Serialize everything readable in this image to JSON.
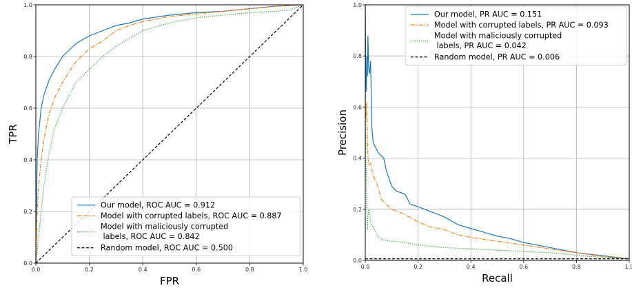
{
  "chart_data": [
    {
      "type": "line",
      "xlabel": "FPR",
      "ylabel": "TPR",
      "xlim": [
        0,
        1
      ],
      "ylim": [
        0,
        1
      ],
      "xticks": [
        "0.0",
        "0.2",
        "0.4",
        "0.6",
        "0.8",
        "1.0"
      ],
      "yticks": [
        "0.0",
        "0.2",
        "0.4",
        "0.6",
        "0.8",
        "1.0"
      ],
      "grid": true,
      "legend_position": "lower-right",
      "series": [
        {
          "name": "Our model, ROC AUC = 0.912",
          "color": "#1f77b4",
          "dash": "solid",
          "x": [
            0,
            0.002,
            0.005,
            0.01,
            0.02,
            0.03,
            0.04,
            0.05,
            0.07,
            0.1,
            0.13,
            0.15,
            0.2,
            0.25,
            0.3,
            0.35,
            0.4,
            0.5,
            0.6,
            0.7,
            0.8,
            0.9,
            1.0
          ],
          "y": [
            0,
            0.2,
            0.4,
            0.5,
            0.6,
            0.65,
            0.68,
            0.71,
            0.75,
            0.8,
            0.83,
            0.85,
            0.88,
            0.9,
            0.92,
            0.93,
            0.945,
            0.96,
            0.97,
            0.975,
            0.985,
            0.995,
            1.0
          ]
        },
        {
          "name": "Model with corrupted labels, ROC AUC = 0.887",
          "color": "#ff7f0e",
          "dash": "dashdot",
          "x": [
            0,
            0.005,
            0.01,
            0.02,
            0.03,
            0.05,
            0.07,
            0.1,
            0.13,
            0.15,
            0.2,
            0.25,
            0.3,
            0.35,
            0.4,
            0.5,
            0.6,
            0.7,
            0.8,
            0.9,
            1.0
          ],
          "y": [
            0,
            0.2,
            0.3,
            0.4,
            0.48,
            0.58,
            0.64,
            0.7,
            0.75,
            0.78,
            0.83,
            0.86,
            0.9,
            0.92,
            0.935,
            0.955,
            0.965,
            0.975,
            0.985,
            0.995,
            1.0
          ]
        },
        {
          "name_line1": "Model with maliciously corrupted",
          "name_line2": " labels, ROC AUC = 0.842",
          "color": "#2ca02c",
          "dash": "dotted",
          "x": [
            0,
            0.01,
            0.02,
            0.03,
            0.05,
            0.07,
            0.1,
            0.13,
            0.15,
            0.2,
            0.25,
            0.3,
            0.35,
            0.4,
            0.5,
            0.6,
            0.7,
            0.8,
            0.9,
            0.95,
            1.0
          ],
          "y": [
            0,
            0.1,
            0.2,
            0.3,
            0.43,
            0.52,
            0.6,
            0.66,
            0.7,
            0.75,
            0.8,
            0.84,
            0.87,
            0.9,
            0.93,
            0.95,
            0.96,
            0.97,
            0.975,
            0.98,
            1.0
          ]
        },
        {
          "name": "Random model, ROC AUC = 0.500",
          "color": "#000000",
          "dash": "dashed",
          "x": [
            0,
            1
          ],
          "y": [
            0,
            1
          ]
        }
      ]
    },
    {
      "type": "line",
      "xlabel": "Recall",
      "ylabel": "Precision",
      "xlim": [
        0,
        1
      ],
      "ylim": [
        0,
        1
      ],
      "xticks": [
        "0.0",
        "0.2",
        "0.4",
        "0.6",
        "0.8",
        "1.0"
      ],
      "yticks": [
        "0.0",
        "0.2",
        "0.4",
        "0.6",
        "0.8",
        "1.0"
      ],
      "grid": true,
      "legend_position": "upper-right",
      "series": [
        {
          "name": "Our model, PR AUC = 0.151",
          "color": "#1f77b4",
          "dash": "solid",
          "x": [
            0,
            0.002,
            0.004,
            0.006,
            0.008,
            0.01,
            0.013,
            0.016,
            0.02,
            0.025,
            0.03,
            0.04,
            0.05,
            0.07,
            0.08,
            0.1,
            0.12,
            0.15,
            0.17,
            0.2,
            0.25,
            0.3,
            0.35,
            0.4,
            0.45,
            0.5,
            0.55,
            0.6,
            0.7,
            0.8,
            0.9,
            1.0
          ],
          "y": [
            1.0,
            0.7,
            0.66,
            0.8,
            0.72,
            0.88,
            0.75,
            0.73,
            0.78,
            0.52,
            0.46,
            0.44,
            0.42,
            0.4,
            0.35,
            0.29,
            0.27,
            0.26,
            0.22,
            0.21,
            0.19,
            0.17,
            0.14,
            0.125,
            0.11,
            0.095,
            0.085,
            0.07,
            0.05,
            0.03,
            0.018,
            0.006
          ]
        },
        {
          "name": "Model with corrupted labels, PR AUC = 0.093",
          "color": "#ff7f0e",
          "dash": "dashdot",
          "x": [
            0,
            0.002,
            0.005,
            0.008,
            0.01,
            0.015,
            0.02,
            0.03,
            0.04,
            0.05,
            0.06,
            0.08,
            0.1,
            0.15,
            0.2,
            0.25,
            0.3,
            0.35,
            0.4,
            0.5,
            0.6,
            0.7,
            0.8,
            0.9,
            1.0
          ],
          "y": [
            0.6,
            0.55,
            0.62,
            0.5,
            0.4,
            0.37,
            0.38,
            0.33,
            0.31,
            0.28,
            0.24,
            0.22,
            0.2,
            0.18,
            0.15,
            0.13,
            0.12,
            0.1,
            0.09,
            0.075,
            0.06,
            0.045,
            0.03,
            0.015,
            0.006
          ]
        },
        {
          "name_line1": "Model with maliciously corrupted",
          "name_line2": " labels, PR AUC = 0.042",
          "color": "#2ca02c",
          "dash": "dotted",
          "x": [
            0,
            0.002,
            0.005,
            0.008,
            0.01,
            0.015,
            0.02,
            0.03,
            0.05,
            0.07,
            0.1,
            0.15,
            0.2,
            0.3,
            0.4,
            0.5,
            0.6,
            0.7,
            0.8,
            0.9,
            1.0
          ],
          "y": [
            1.0,
            0.45,
            0.25,
            0.12,
            0.17,
            0.2,
            0.15,
            0.13,
            0.09,
            0.08,
            0.075,
            0.07,
            0.06,
            0.05,
            0.045,
            0.04,
            0.035,
            0.03,
            0.02,
            0.012,
            0.006
          ]
        },
        {
          "name": "Random model, PR AUC = 0.006",
          "color": "#000000",
          "dash": "dashed",
          "x": [
            0,
            1
          ],
          "y": [
            0.006,
            0.006
          ]
        }
      ]
    }
  ]
}
